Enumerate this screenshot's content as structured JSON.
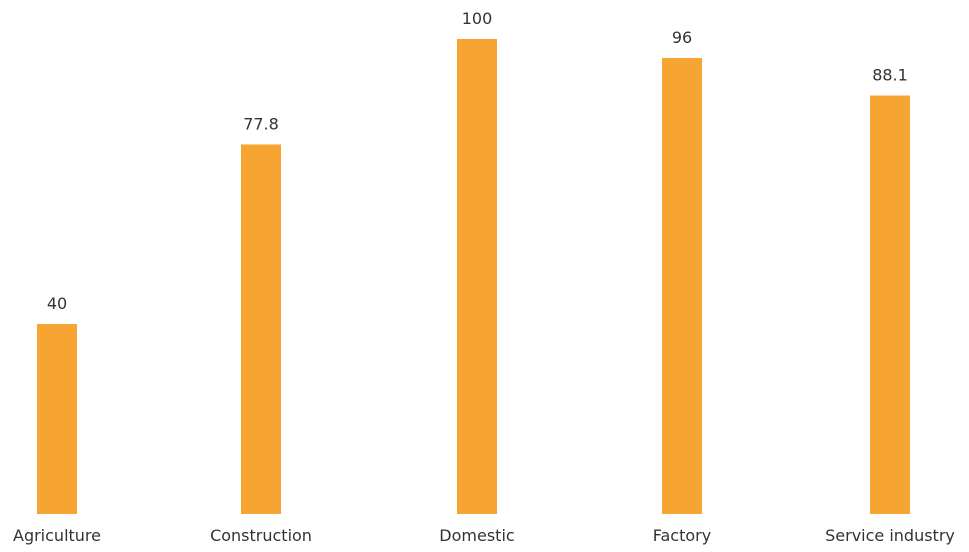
{
  "chart_data": {
    "type": "bar",
    "categories": [
      "Agriculture",
      "Construction",
      "Domestic",
      "Factory",
      "Service industry"
    ],
    "values": [
      40,
      77.8,
      100,
      96,
      88.1
    ],
    "value_labels": [
      "40",
      "77.8",
      "100",
      "96",
      "88.1"
    ],
    "title": "",
    "xlabel": "",
    "ylabel": "",
    "ylim": [
      0,
      100
    ],
    "grid": false,
    "legend": "none",
    "bar_color": "#F7A532"
  }
}
